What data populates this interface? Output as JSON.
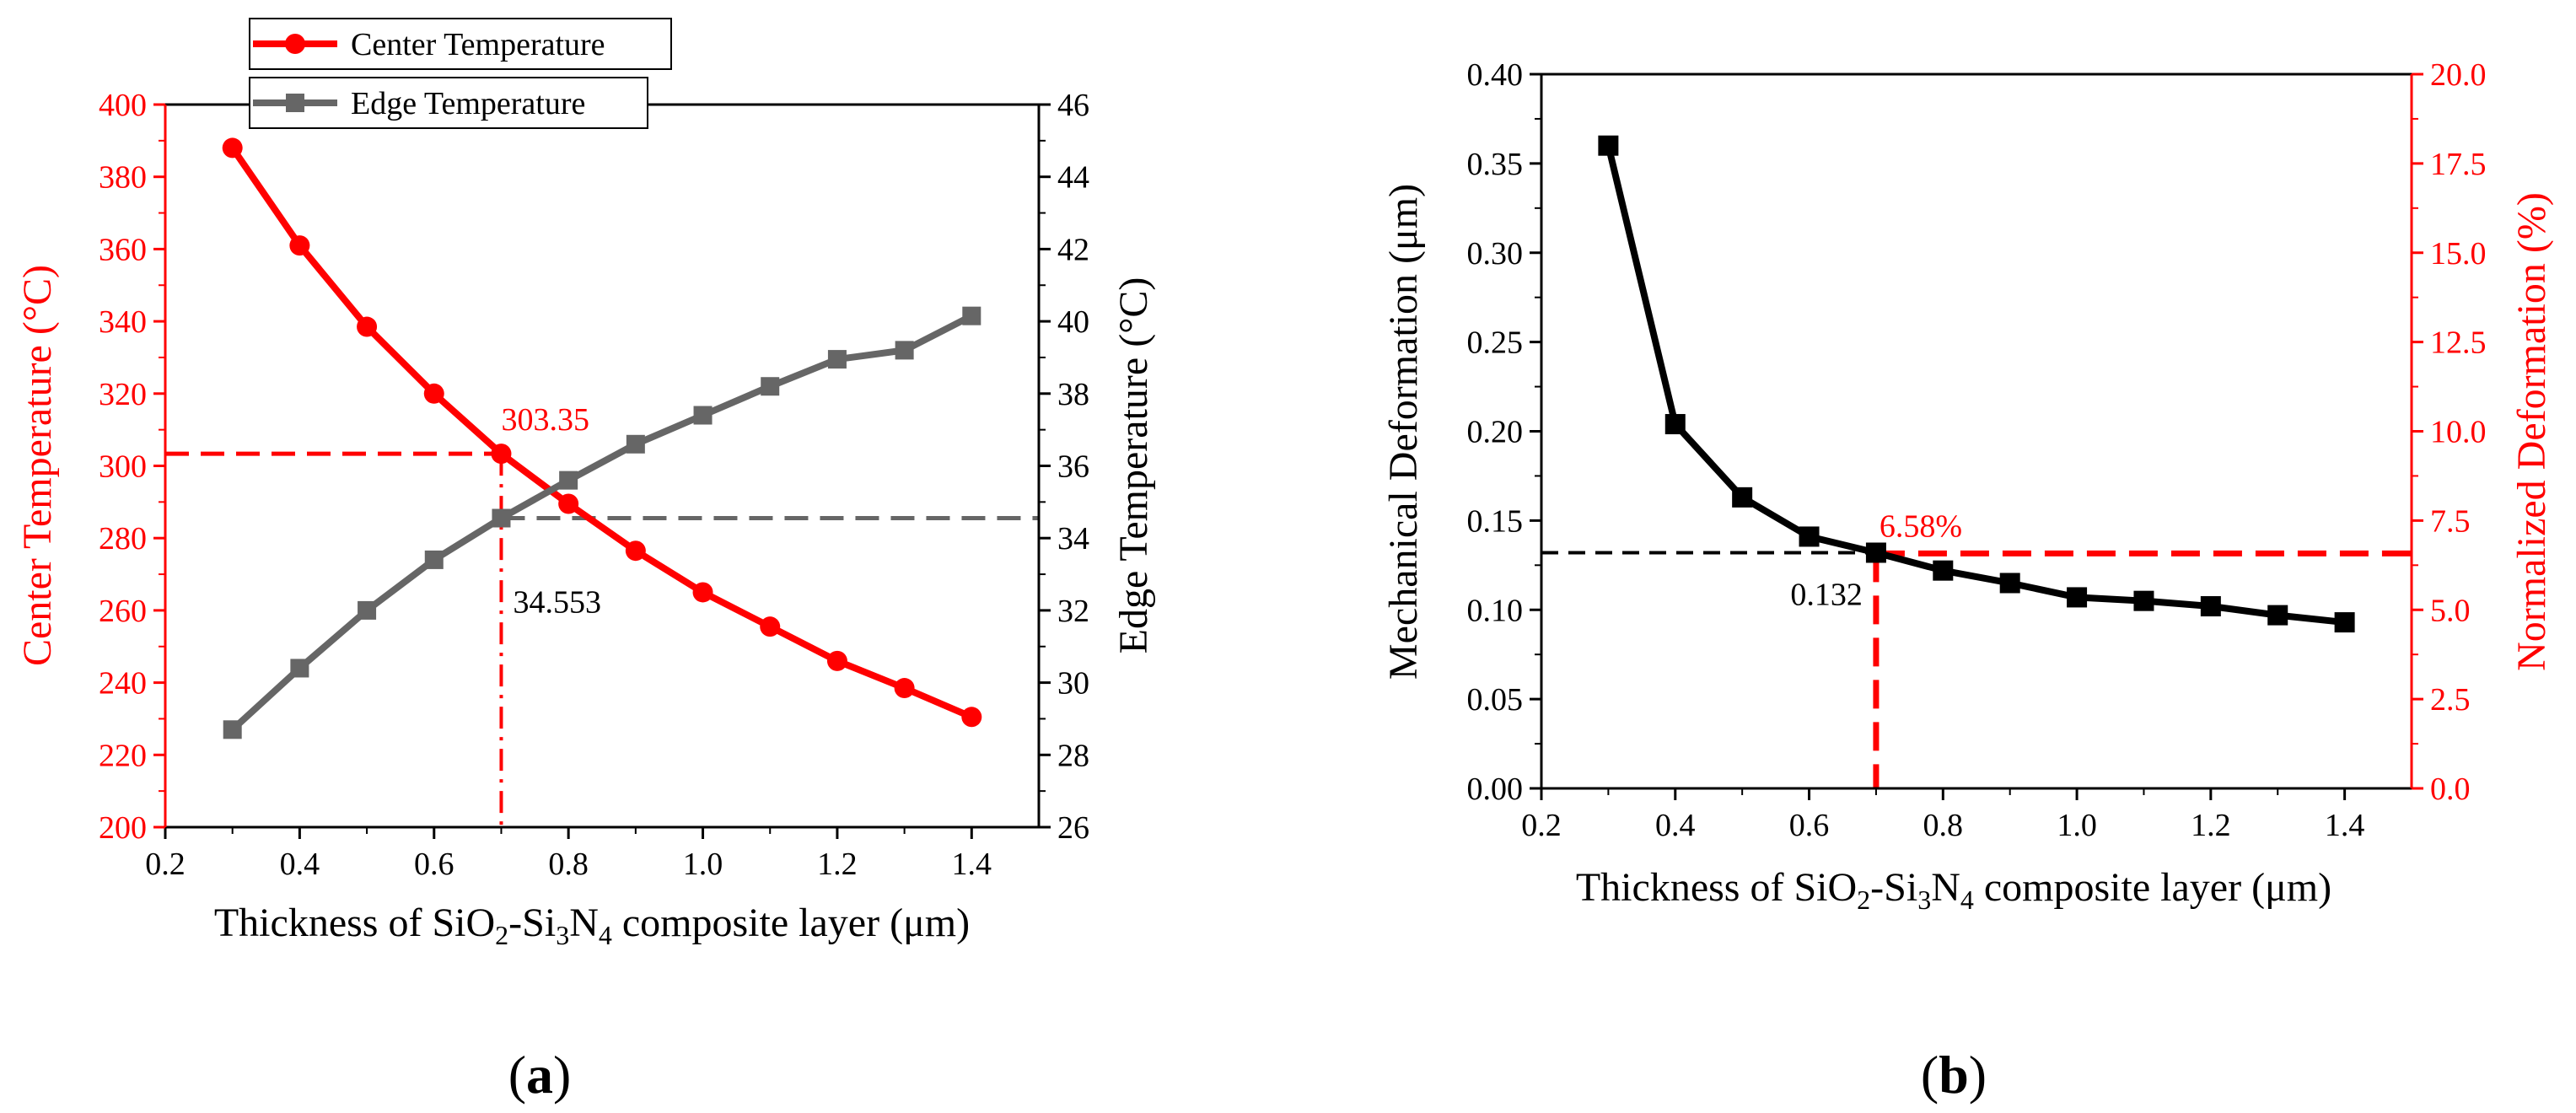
{
  "colors": {
    "center": "#ff0000",
    "edge": "#666666",
    "deform": "#000000",
    "normalized": "#ff0000"
  },
  "chart_data": [
    {
      "id": "a",
      "type": "line",
      "panel_label": "(a)",
      "xlabel": {
        "pre": "Thickness of SiO",
        "s1": "2",
        "mid1": "-Si",
        "s2": "3",
        "mid2": "N",
        "s3": "4",
        "post": " composite layer (μm)"
      },
      "ylabel_left": "Center Temperature (°C)",
      "ylabel_right": "Edge Temperature (°C)",
      "xlim": [
        0.2,
        1.5
      ],
      "ylim_left": [
        200,
        400
      ],
      "ylim_right": [
        26,
        46
      ],
      "xticks": [
        "0.2",
        "0.4",
        "0.6",
        "0.8",
        "1.0",
        "1.2",
        "1.4"
      ],
      "yticks_left": [
        "200",
        "220",
        "240",
        "260",
        "280",
        "300",
        "320",
        "340",
        "360",
        "380",
        "400"
      ],
      "yticks_right": [
        "26",
        "28",
        "30",
        "32",
        "34",
        "36",
        "38",
        "40",
        "42",
        "44",
        "46"
      ],
      "x": [
        0.3,
        0.4,
        0.5,
        0.6,
        0.7,
        0.8,
        0.9,
        1.0,
        1.1,
        1.2,
        1.3,
        1.4
      ],
      "series": [
        {
          "name": "Center Temperature",
          "axis": "left",
          "marker": "circle",
          "values": [
            388,
            361,
            338.5,
            320,
            303.35,
            289.5,
            276.5,
            265,
            255.5,
            246,
            238.5,
            230.5
          ]
        },
        {
          "name": "Edge Temperature",
          "axis": "right",
          "marker": "square",
          "values": [
            28.7,
            30.4,
            32.0,
            33.4,
            34.553,
            35.6,
            36.6,
            37.4,
            38.2,
            38.95,
            39.2,
            40.15
          ]
        }
      ],
      "annotations": [
        {
          "text": "303.35",
          "x": 0.7,
          "y": 303.35,
          "axis": "left",
          "color": "#ff0000"
        },
        {
          "text": "34.553",
          "x": 0.7,
          "y": 34.553,
          "axis": "right",
          "color": "#000000"
        }
      ],
      "legend": "top-center, outside"
    },
    {
      "id": "b",
      "type": "line",
      "panel_label": "(b)",
      "xlabel": {
        "pre": "Thickness of SiO",
        "s1": "2",
        "mid1": "-Si",
        "s2": "3",
        "mid2": "N",
        "s3": "4",
        "post": " composite layer (μm)"
      },
      "ylabel_left": "Mechanical Deformation (μm)",
      "ylabel_right": "Normalized Deformation (%)",
      "xlim": [
        0.2,
        1.5
      ],
      "ylim_left": [
        0,
        0.4
      ],
      "ylim_right": [
        0,
        20
      ],
      "xticks": [
        "0.2",
        "0.4",
        "0.6",
        "0.8",
        "1.0",
        "1.2",
        "1.4"
      ],
      "yticks_left": [
        "0.00",
        "0.05",
        "0.10",
        "0.15",
        "0.20",
        "0.25",
        "0.30",
        "0.35",
        "0.40"
      ],
      "yticks_right": [
        "0.0",
        "2.5",
        "5.0",
        "7.5",
        "10.0",
        "12.5",
        "15.0",
        "17.5",
        "20.0"
      ],
      "x": [
        0.3,
        0.4,
        0.5,
        0.6,
        0.7,
        0.8,
        0.9,
        1.0,
        1.1,
        1.2,
        1.3,
        1.4
      ],
      "series": [
        {
          "name": "Mechanical Deformation",
          "axis": "left",
          "marker": "square",
          "values": [
            0.36,
            0.204,
            0.163,
            0.141,
            0.132,
            0.122,
            0.115,
            0.107,
            0.105,
            0.102,
            0.097,
            0.093
          ]
        }
      ],
      "annotations": [
        {
          "text": "0.132",
          "x": 0.7,
          "y": 0.132,
          "axis": "left",
          "color": "#000000"
        },
        {
          "text": "6.58%",
          "x": 0.7,
          "y": 6.58,
          "axis": "right",
          "color": "#ff0000"
        }
      ]
    }
  ]
}
